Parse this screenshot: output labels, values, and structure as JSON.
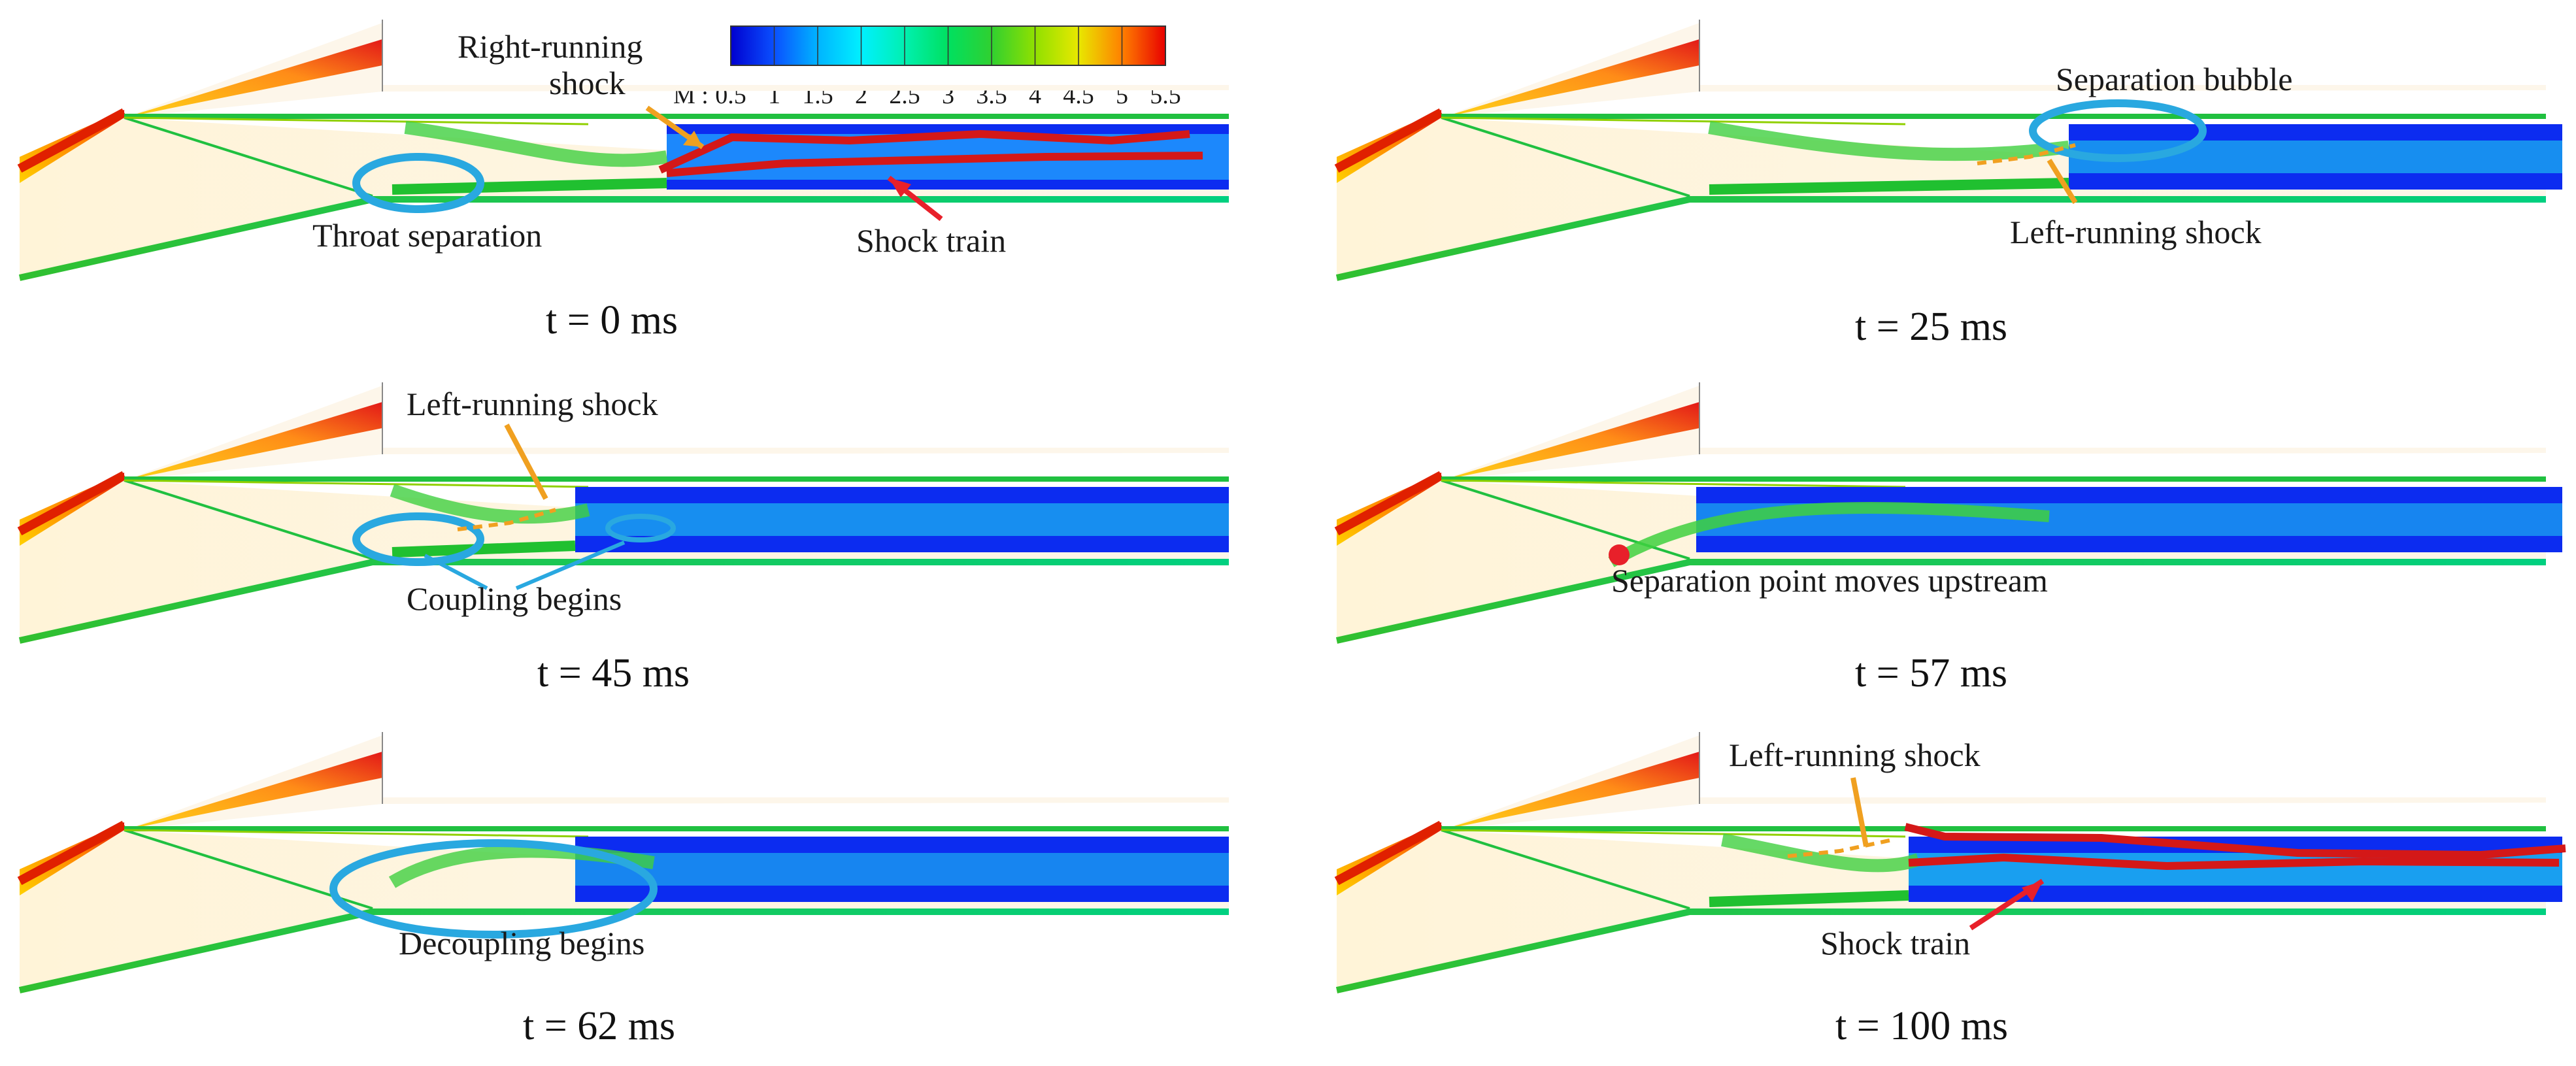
{
  "colorbar": {
    "label": "M :",
    "ticks": [
      "0.5",
      "1",
      "1.5",
      "2",
      "2.5",
      "3",
      "3.5",
      "4",
      "4.5",
      "5",
      "5.5"
    ],
    "colors": [
      "#0000d0",
      "#0a50ff",
      "#00b4ff",
      "#00f0ff",
      "#00f0b0",
      "#00e060",
      "#30d030",
      "#90e000",
      "#e8e800",
      "#ffb000",
      "#ff6000",
      "#e80000"
    ]
  },
  "panels": [
    {
      "caption": "t = 0 ms",
      "labels": {
        "right_running_shock": "Right-running\nshock",
        "throat_separation": "Throat separation",
        "shock_train": "Shock train"
      }
    },
    {
      "caption": "t = 25 ms",
      "labels": {
        "separation_bubble": "Separation bubble",
        "left_running_shock": "Left-running shock"
      }
    },
    {
      "caption": "t = 45 ms",
      "labels": {
        "left_running_shock": "Left-running shock",
        "coupling_begins": "Coupling begins"
      }
    },
    {
      "caption": "t = 57 ms",
      "labels": {
        "separation_point": "Separation point moves upstream"
      }
    },
    {
      "caption": "t = 62 ms",
      "labels": {
        "decoupling_begins": "Decoupling begins"
      }
    },
    {
      "caption": "t = 100 ms",
      "labels": {
        "left_running_shock": "Left-running shock",
        "shock_train": "Shock train"
      }
    }
  ],
  "annotation_colors": {
    "ellipse": "#29a8e0",
    "red_arrow": "#e8202a",
    "orange_arrow": "#f0a020",
    "shock_train_line": "#d41818"
  }
}
